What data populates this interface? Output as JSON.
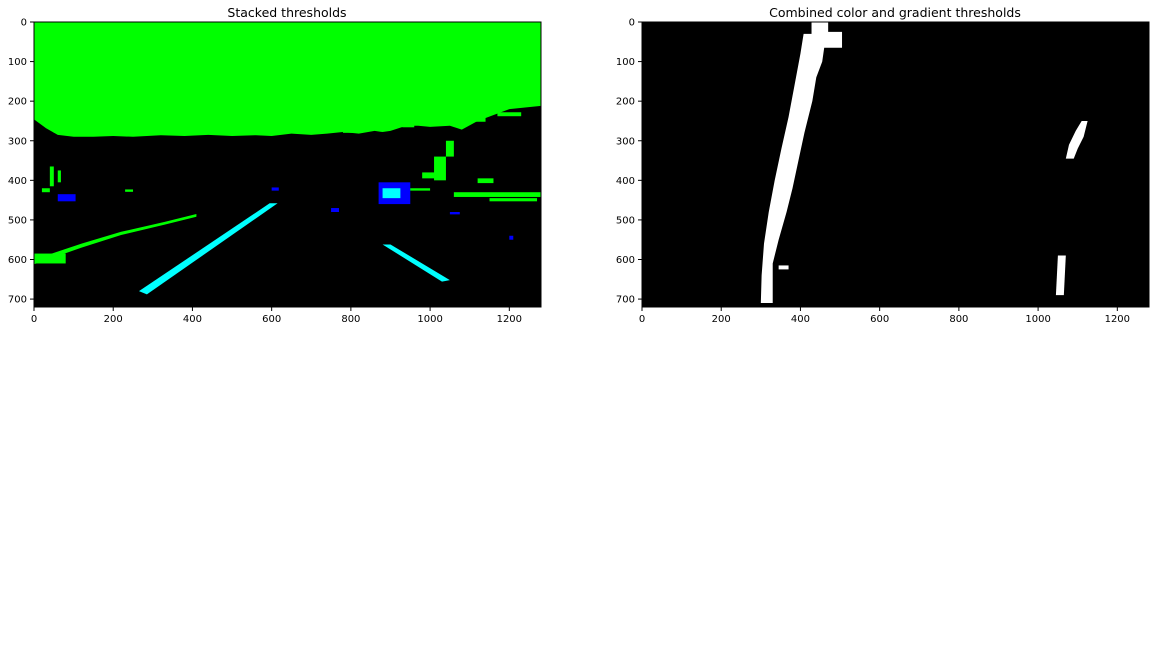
{
  "figure": {
    "background": "#ffffff"
  },
  "panels": [
    {
      "id": "stacked",
      "title": "Stacked thresholds",
      "image_width": 1280,
      "image_height": 720,
      "x_ticks": [
        0,
        200,
        400,
        600,
        800,
        1000,
        1200
      ],
      "y_ticks": [
        0,
        100,
        200,
        300,
        400,
        500,
        600,
        700
      ],
      "colors": {
        "background": "#000000",
        "color_threshold": "#00ff00",
        "gradient_threshold": "#0000ff",
        "both_thresholds": "#00ffff"
      }
    },
    {
      "id": "combined",
      "title": "Combined color and gradient thresholds",
      "image_width": 1280,
      "image_height": 720,
      "x_ticks": [
        0,
        200,
        400,
        600,
        800,
        1000,
        1200
      ],
      "y_ticks": [
        0,
        100,
        200,
        300,
        400,
        500,
        600,
        700
      ],
      "colors": {
        "background": "#000000",
        "binary_on": "#ffffff"
      }
    }
  ]
}
